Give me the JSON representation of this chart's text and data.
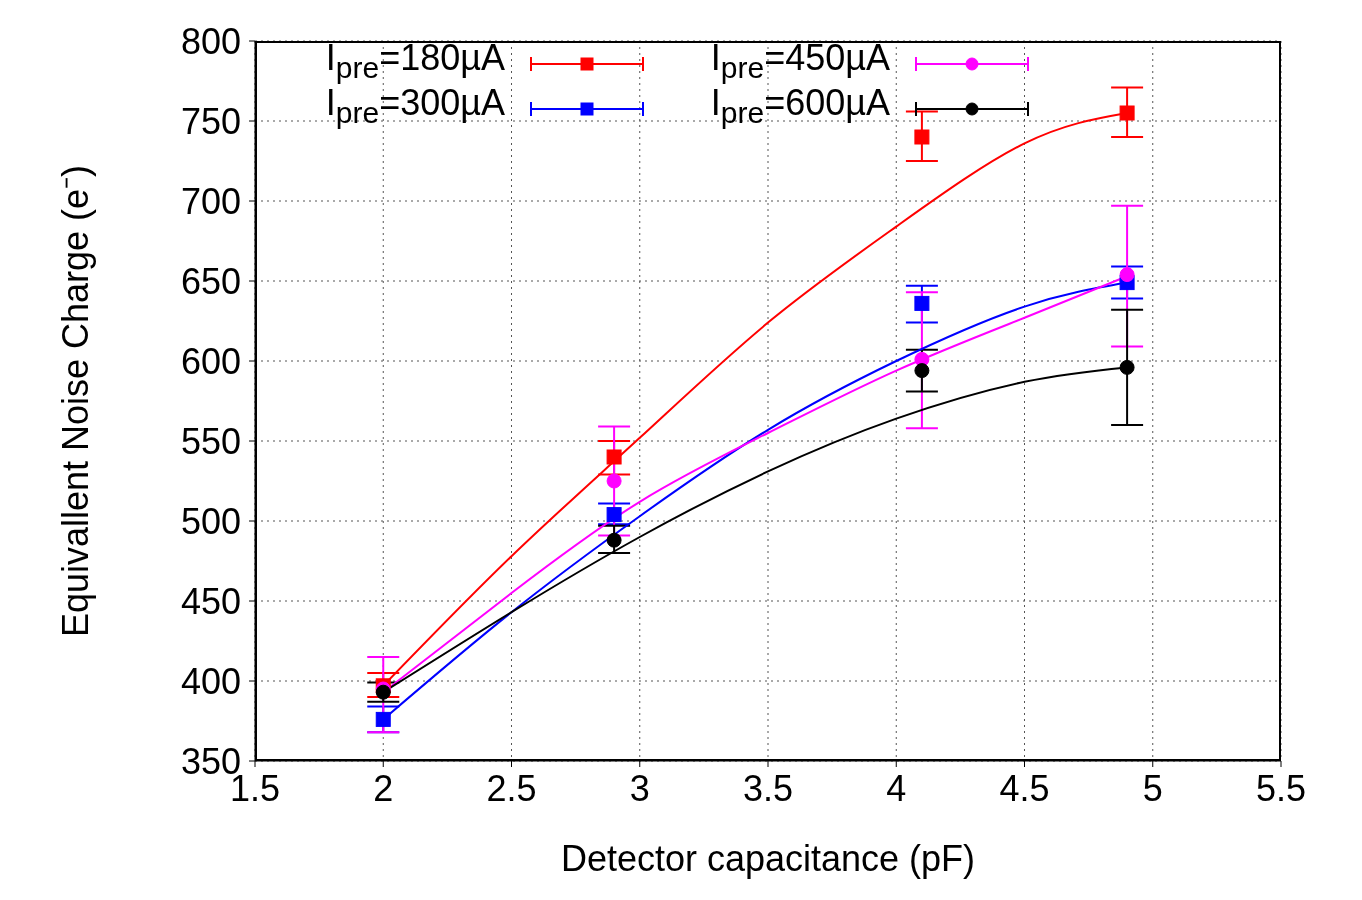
{
  "chart_data": {
    "type": "scatter",
    "xlabel": "Detector capacitance (pF)",
    "ylabel": "Equivallent Noise Charge (e⁻)",
    "xlim": [
      1.5,
      5.5
    ],
    "xticks": [
      1.5,
      2,
      2.5,
      3,
      3.5,
      4,
      4.5,
      5,
      5.5
    ],
    "ylim": [
      350,
      800
    ],
    "yticks": [
      350,
      400,
      450,
      500,
      550,
      600,
      650,
      700,
      750,
      800
    ],
    "grid": true,
    "legend": "top",
    "series": [
      {
        "name": "I$_{pre}$=180µA",
        "marker": "square",
        "color": "#ff0000",
        "x": [
          2,
          2.9,
          4.1,
          4.9
        ],
        "values": [
          397,
          540,
          740,
          755
        ],
        "errors": [
          [
            390,
            405
          ],
          [
            529,
            550
          ],
          [
            725,
            756
          ],
          [
            740,
            771
          ]
        ]
      },
      {
        "name": "I$_{pre}$=300µA",
        "marker": "square",
        "color": "#0000ff",
        "x": [
          2,
          2.9,
          4.1,
          4.9
        ],
        "values": [
          376,
          504,
          636,
          649
        ],
        "errors": [
          [
            368,
            384
          ],
          [
            498,
            511
          ],
          [
            624,
            647
          ],
          [
            639,
            659
          ]
        ]
      },
      {
        "name": "I$_{pre}$=450µA",
        "marker": "circle",
        "color": "#ff00ff",
        "x": [
          2,
          2.9,
          4.1,
          4.9
        ],
        "values": [
          395,
          525,
          601,
          654
        ],
        "errors": [
          [
            368,
            415
          ],
          [
            491,
            559
          ],
          [
            558,
            643
          ],
          [
            609,
            697
          ]
        ]
      },
      {
        "name": "I$_{pre}$=600µA",
        "marker": "circle",
        "color": "#000000",
        "x": [
          2,
          2.9,
          4.1,
          4.9
        ],
        "values": [
          393,
          488,
          594,
          596
        ],
        "errors": [
          [
            387,
            399
          ],
          [
            480,
            497
          ],
          [
            581,
            607
          ],
          [
            560,
            632
          ]
        ]
      },
      {
        "type": "line",
        "color": "#ff0000",
        "x": [
          2,
          2.5,
          3,
          3.5,
          4,
          4.5,
          4.9
        ],
        "values": [
          397,
          478,
          552,
          624,
          684,
          736,
          755
        ]
      },
      {
        "type": "line",
        "color": "#0000ff",
        "x": [
          2,
          2.5,
          3,
          3.5,
          4,
          4.5,
          4.9
        ],
        "values": [
          376,
          443,
          503,
          557,
          600,
          634,
          649
        ]
      },
      {
        "type": "line",
        "color": "#ff00ff",
        "x": [
          2,
          2.5,
          3,
          3.5,
          4,
          4.5,
          4.9
        ],
        "values": [
          393,
          455,
          512,
          555,
          594,
          627,
          653
        ]
      },
      {
        "type": "line",
        "color": "#000000",
        "x": [
          2,
          2.5,
          3,
          3.5,
          4,
          4.5,
          4.9
        ],
        "values": [
          393,
          443,
          490,
          531,
          564,
          587,
          596
        ]
      }
    ]
  }
}
